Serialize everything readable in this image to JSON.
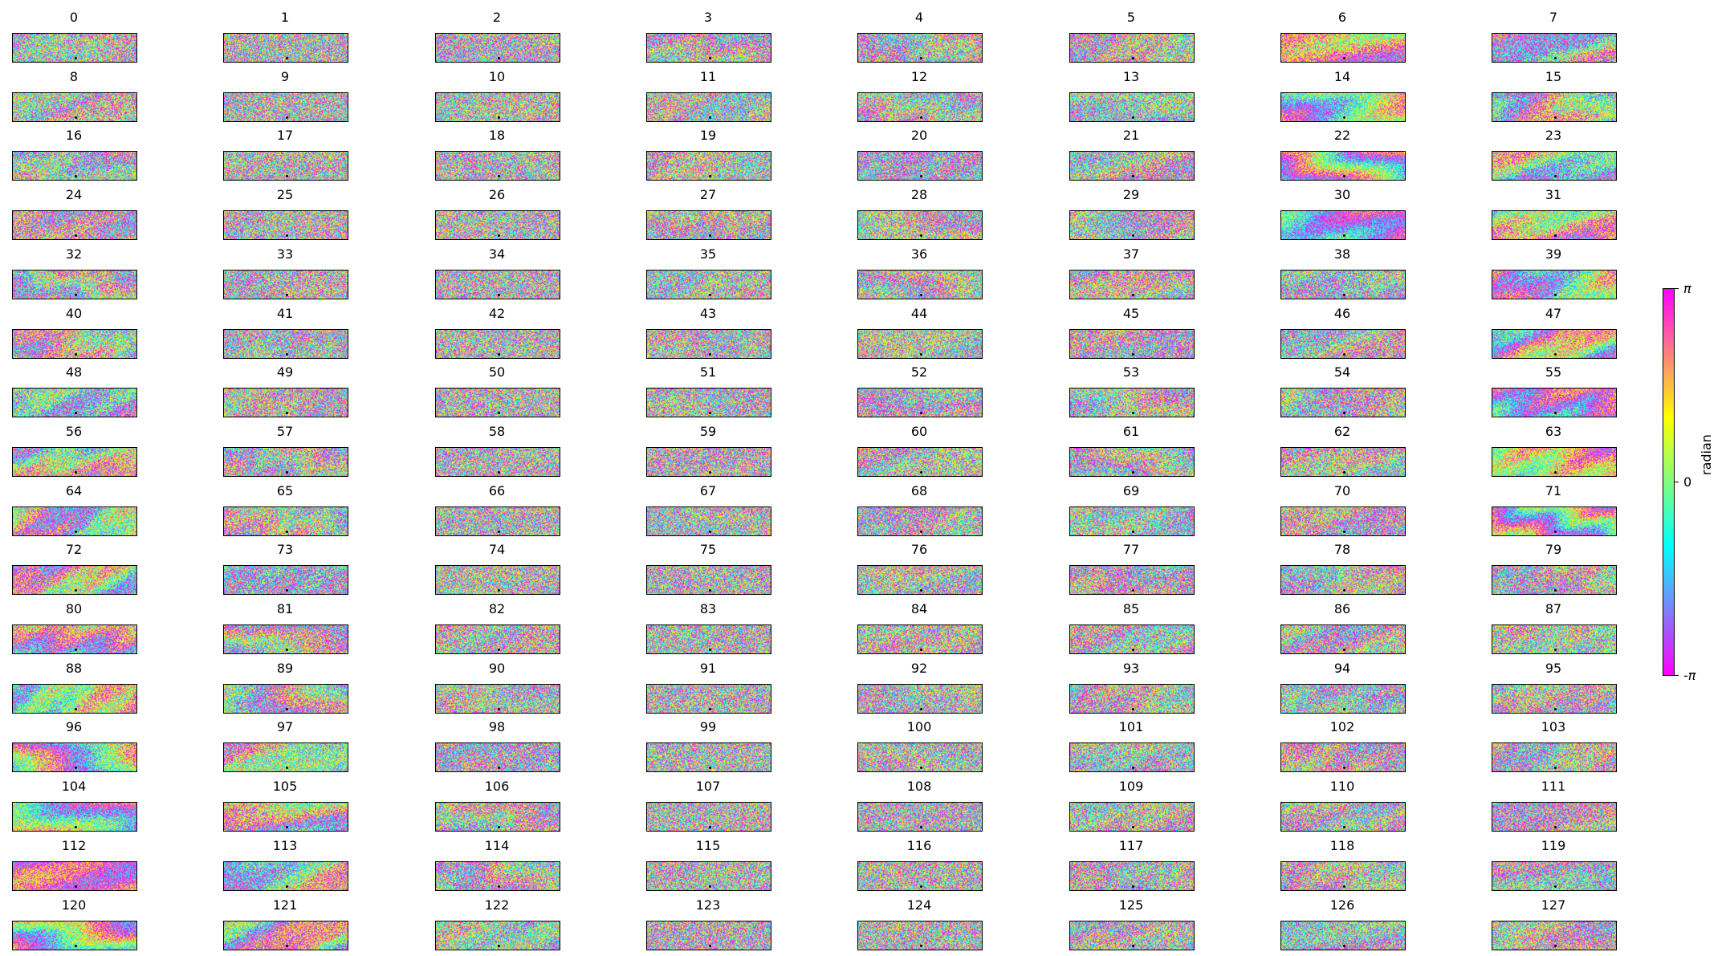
{
  "chart_data": {
    "type": "heatmap",
    "title": "",
    "description_free": true,
    "panel_titles": [
      "0",
      "1",
      "2",
      "3",
      "4",
      "5",
      "6",
      "7",
      "8",
      "9",
      "10",
      "11",
      "12",
      "13",
      "14",
      "15",
      "16",
      "17",
      "18",
      "19",
      "20",
      "21",
      "22",
      "23",
      "24",
      "25",
      "26",
      "27",
      "28",
      "29",
      "30",
      "31",
      "32",
      "33",
      "34",
      "35",
      "36",
      "37",
      "38",
      "39",
      "40",
      "41",
      "42",
      "43",
      "44",
      "45",
      "46",
      "47",
      "48",
      "49",
      "50",
      "51",
      "52",
      "53",
      "54",
      "55",
      "56",
      "57",
      "58",
      "59",
      "60",
      "61",
      "62",
      "63",
      "64",
      "65",
      "66",
      "67",
      "68",
      "69",
      "70",
      "71",
      "72",
      "73",
      "74",
      "75",
      "76",
      "77",
      "78",
      "79",
      "80",
      "81",
      "82",
      "83",
      "84",
      "85",
      "86",
      "87",
      "88",
      "89",
      "90",
      "91",
      "92",
      "93",
      "94",
      "95",
      "96",
      "97",
      "98",
      "99",
      "100",
      "101",
      "102",
      "103",
      "104",
      "105",
      "106",
      "107",
      "108",
      "109",
      "110",
      "111",
      "112",
      "113",
      "114",
      "115",
      "116",
      "117",
      "118",
      "119",
      "120",
      "121",
      "122",
      "123",
      "124",
      "125",
      "126",
      "127"
    ],
    "grid": {
      "rows": 16,
      "columns": 8
    },
    "colormap": "hsv-cyclic",
    "colorbar": {
      "label": "radian",
      "range": [
        -3.14159,
        3.14159
      ],
      "ticks": [
        "-π",
        "0",
        "π"
      ],
      "colors": [
        "#ff00ff",
        "#7f7fff",
        "#00ffff",
        "#7fff7f",
        "#ffff00",
        "#ff7f7f",
        "#ff00ff"
      ]
    }
  }
}
